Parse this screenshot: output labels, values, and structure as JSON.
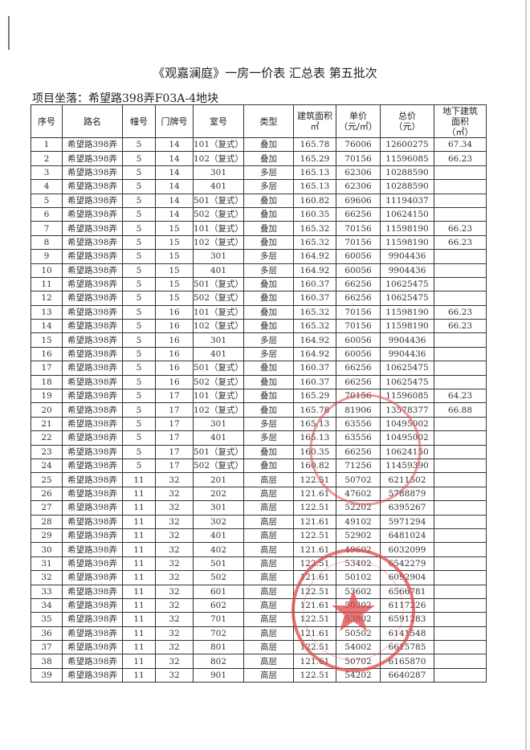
{
  "title": "《观嘉澜庭》一房一价表 汇总表   第五批次",
  "subtitle": "项目坐落：希望路398弄F03A-4地块",
  "headers": [
    "序号",
    "路名",
    "幢号",
    "门牌号",
    "室号",
    "类型",
    "建筑面积\n㎡",
    "单价\n（元/㎡）",
    "总价\n（元）",
    "地下建筑\n面积\n（㎡）"
  ],
  "rows": [
    [
      "1",
      "希望路398弄",
      "5",
      "14",
      "101（复式）",
      "叠加",
      "165.78",
      "76006",
      "12600275",
      "67.34"
    ],
    [
      "2",
      "希望路398弄",
      "5",
      "14",
      "102（复式）",
      "叠加",
      "165.29",
      "70156",
      "11596085",
      "66.23"
    ],
    [
      "3",
      "希望路398弄",
      "5",
      "14",
      "301",
      "多层",
      "165.13",
      "62306",
      "10288590",
      ""
    ],
    [
      "4",
      "希望路398弄",
      "5",
      "14",
      "401",
      "多层",
      "165.13",
      "62306",
      "10288590",
      ""
    ],
    [
      "5",
      "希望路398弄",
      "5",
      "14",
      "501（复式）",
      "叠加",
      "160.82",
      "69606",
      "11194037",
      ""
    ],
    [
      "6",
      "希望路398弄",
      "5",
      "14",
      "502（复式）",
      "叠加",
      "160.35",
      "66256",
      "10624150",
      ""
    ],
    [
      "7",
      "希望路398弄",
      "5",
      "15",
      "101（复式）",
      "叠加",
      "165.32",
      "70156",
      "11598190",
      "66.23"
    ],
    [
      "8",
      "希望路398弄",
      "5",
      "15",
      "102（复式）",
      "叠加",
      "165.32",
      "70156",
      "11598190",
      "66.23"
    ],
    [
      "9",
      "希望路398弄",
      "5",
      "15",
      "301",
      "多层",
      "164.92",
      "60056",
      "9904436",
      ""
    ],
    [
      "10",
      "希望路398弄",
      "5",
      "15",
      "401",
      "多层",
      "164.92",
      "60056",
      "9904436",
      ""
    ],
    [
      "11",
      "希望路398弄",
      "5",
      "15",
      "501（复式）",
      "叠加",
      "160.37",
      "66256",
      "10625475",
      ""
    ],
    [
      "12",
      "希望路398弄",
      "5",
      "15",
      "502（复式）",
      "叠加",
      "160.37",
      "66256",
      "10625475",
      ""
    ],
    [
      "13",
      "希望路398弄",
      "5",
      "16",
      "101（复式）",
      "叠加",
      "165.32",
      "70156",
      "11598190",
      "66.23"
    ],
    [
      "14",
      "希望路398弄",
      "5",
      "16",
      "102（复式）",
      "叠加",
      "165.32",
      "70156",
      "11598190",
      "66.23"
    ],
    [
      "15",
      "希望路398弄",
      "5",
      "16",
      "301",
      "多层",
      "164.92",
      "60056",
      "9904436",
      ""
    ],
    [
      "16",
      "希望路398弄",
      "5",
      "16",
      "401",
      "多层",
      "164.92",
      "60056",
      "9904436",
      ""
    ],
    [
      "17",
      "希望路398弄",
      "5",
      "16",
      "501（复式）",
      "叠加",
      "160.37",
      "66256",
      "10625475",
      ""
    ],
    [
      "18",
      "希望路398弄",
      "5",
      "16",
      "502（复式）",
      "叠加",
      "160.37",
      "66256",
      "10625475",
      ""
    ],
    [
      "19",
      "希望路398弄",
      "5",
      "17",
      "101（复式）",
      "叠加",
      "165.29",
      "70156",
      "11596085",
      "64.23"
    ],
    [
      "20",
      "希望路398弄",
      "5",
      "17",
      "102（复式）",
      "叠加",
      "165.78",
      "81906",
      "13578377",
      "66.88"
    ],
    [
      "21",
      "希望路398弄",
      "5",
      "17",
      "301",
      "多层",
      "165.13",
      "63556",
      "10495002",
      ""
    ],
    [
      "22",
      "希望路398弄",
      "5",
      "17",
      "401",
      "多层",
      "165.13",
      "63556",
      "10495002",
      ""
    ],
    [
      "23",
      "希望路398弄",
      "5",
      "17",
      "501（复式）",
      "叠加",
      "160.35",
      "66256",
      "10624150",
      ""
    ],
    [
      "24",
      "希望路398弄",
      "5",
      "17",
      "502（复式）",
      "叠加",
      "160.82",
      "71256",
      "11459390",
      ""
    ],
    [
      "25",
      "希望路398弄",
      "11",
      "32",
      "201",
      "高层",
      "122.51",
      "50702",
      "6211502",
      ""
    ],
    [
      "26",
      "希望路398弄",
      "11",
      "32",
      "202",
      "高层",
      "121.61",
      "47602",
      "5788879",
      ""
    ],
    [
      "27",
      "希望路398弄",
      "11",
      "32",
      "301",
      "高层",
      "122.51",
      "52202",
      "6395267",
      ""
    ],
    [
      "28",
      "希望路398弄",
      "11",
      "32",
      "302",
      "高层",
      "121.61",
      "49102",
      "5971294",
      ""
    ],
    [
      "29",
      "希望路398弄",
      "11",
      "32",
      "401",
      "高层",
      "122.51",
      "52902",
      "6481024",
      ""
    ],
    [
      "30",
      "希望路398弄",
      "11",
      "32",
      "402",
      "高层",
      "121.61",
      "49602",
      "6032099",
      ""
    ],
    [
      "31",
      "希望路398弄",
      "11",
      "32",
      "501",
      "高层",
      "122.51",
      "53402",
      "6542279",
      ""
    ],
    [
      "32",
      "希望路398弄",
      "11",
      "32",
      "502",
      "高层",
      "121.61",
      "50102",
      "6092904",
      ""
    ],
    [
      "33",
      "希望路398弄",
      "11",
      "32",
      "601",
      "高层",
      "122.51",
      "53602",
      "6566781",
      ""
    ],
    [
      "34",
      "希望路398弄",
      "11",
      "32",
      "602",
      "高层",
      "121.61",
      "50302",
      "6117226",
      ""
    ],
    [
      "35",
      "希望路398弄",
      "11",
      "32",
      "701",
      "高层",
      "122.51",
      "53802",
      "6591283",
      ""
    ],
    [
      "36",
      "希望路398弄",
      "11",
      "32",
      "702",
      "高层",
      "121.61",
      "50502",
      "6141548",
      ""
    ],
    [
      "37",
      "希望路398弄",
      "11",
      "32",
      "801",
      "高层",
      "122.51",
      "54002",
      "6615785",
      ""
    ],
    [
      "38",
      "希望路398弄",
      "11",
      "32",
      "802",
      "高层",
      "121.61",
      "50702",
      "6165870",
      ""
    ],
    [
      "39",
      "希望路398弄",
      "11",
      "32",
      "901",
      "高层",
      "122.51",
      "54202",
      "6640287",
      ""
    ]
  ],
  "stamp_color": "#e0474c"
}
